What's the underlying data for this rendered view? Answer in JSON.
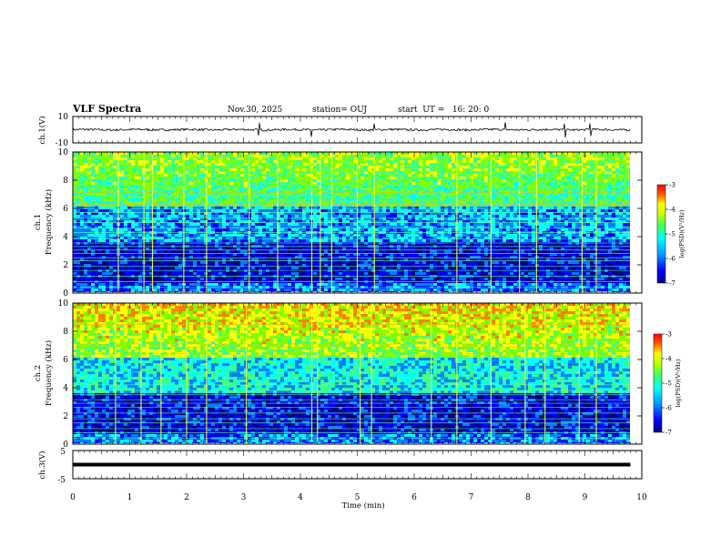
{
  "header": {
    "title": "VLF Spectra",
    "date": "Nov.30, 2025",
    "station": "station= OUJ",
    "start": "start  UT =   16: 20: 0"
  },
  "colors": {
    "axis": "#000000",
    "trace": "#000000",
    "background": "#ffffff",
    "colormap": [
      "#000080",
      "#0000ff",
      "#0080ff",
      "#00ffff",
      "#40ff80",
      "#80ff00",
      "#ffff00",
      "#ff8000",
      "#ff0000",
      "#800000"
    ]
  },
  "chart_data": [
    {
      "type": "line",
      "name": "ch1-waveform",
      "ylabel": "ch.1(V)",
      "ylim": [
        -10,
        10
      ],
      "yticks": [
        "10",
        "-10"
      ],
      "xlim": [
        0,
        10
      ],
      "baseline": 0,
      "spikes_min": [
        3.27,
        4.19,
        5.3,
        7.6,
        8.65,
        9.1
      ]
    },
    {
      "type": "heatmap",
      "name": "ch1-spectrogram",
      "ylabel": "ch.1\nFrequency (kHz)",
      "ylim": [
        0,
        10
      ],
      "yticks": [
        "0",
        "2",
        "4",
        "6",
        "8",
        "10"
      ],
      "xlim": [
        0,
        9.8
      ],
      "vertical_streaks_min": [
        0.8,
        1.25,
        1.4,
        1.95,
        2.35,
        3.1,
        3.6,
        4.2,
        4.35,
        4.55,
        5.0,
        5.3,
        6.75,
        7.35,
        7.85,
        8.15,
        8.95,
        9.2
      ],
      "horizontal_lines_khz": [
        0.4,
        0.8,
        1.2,
        1.6,
        1.9,
        2.3,
        2.5,
        2.8,
        3.05,
        3.3,
        3.55,
        3.85,
        4.3,
        4.6,
        5.0,
        5.3,
        5.7,
        6.0,
        6.3,
        6.6,
        7.15
      ],
      "colorbar": {
        "label": "log(PSD)(V²/Hz)",
        "range": [
          -7,
          -3
        ],
        "ticks": [
          "-3",
          "-4",
          "-5",
          "-6",
          "-7"
        ]
      }
    },
    {
      "type": "heatmap",
      "name": "ch2-spectrogram",
      "ylabel": "ch.2\nFrequency (kHz)",
      "ylim": [
        0,
        10
      ],
      "yticks": [
        "0",
        "2",
        "4",
        "6",
        "8",
        "10"
      ],
      "xlim": [
        0,
        9.8
      ],
      "vertical_streaks_min": [
        0.75,
        1.2,
        1.55,
        2.0,
        2.35,
        3.05,
        4.2,
        4.3,
        5.05,
        5.25,
        6.3,
        6.75,
        7.35,
        7.95,
        8.3,
        8.9,
        9.2
      ],
      "horizontal_lines_khz": [
        0.4,
        0.8,
        1.1,
        1.5,
        1.8,
        2.2,
        2.6,
        2.9,
        3.15,
        3.5,
        3.8,
        4.2,
        4.7,
        5.1,
        6.4,
        6.85,
        7.1,
        8.5
      ],
      "colorbar": {
        "label": "log(PSD)(V²/Hz)",
        "range": [
          -7,
          -3
        ],
        "ticks": [
          "-3",
          "-4",
          "-5",
          "-6",
          "-7"
        ]
      }
    },
    {
      "type": "line",
      "name": "ch3-waveform",
      "ylabel": "ch.3(V)",
      "ylim": [
        -5,
        5
      ],
      "yticks": [
        "5",
        "-5"
      ],
      "xlim": [
        0,
        10
      ],
      "baseline": 0
    }
  ],
  "xaxis": {
    "label": "Time (min)",
    "ticks": [
      "0",
      "1",
      "2",
      "3",
      "4",
      "5",
      "6",
      "7",
      "8",
      "9",
      "10"
    ],
    "range": [
      0,
      10
    ]
  }
}
